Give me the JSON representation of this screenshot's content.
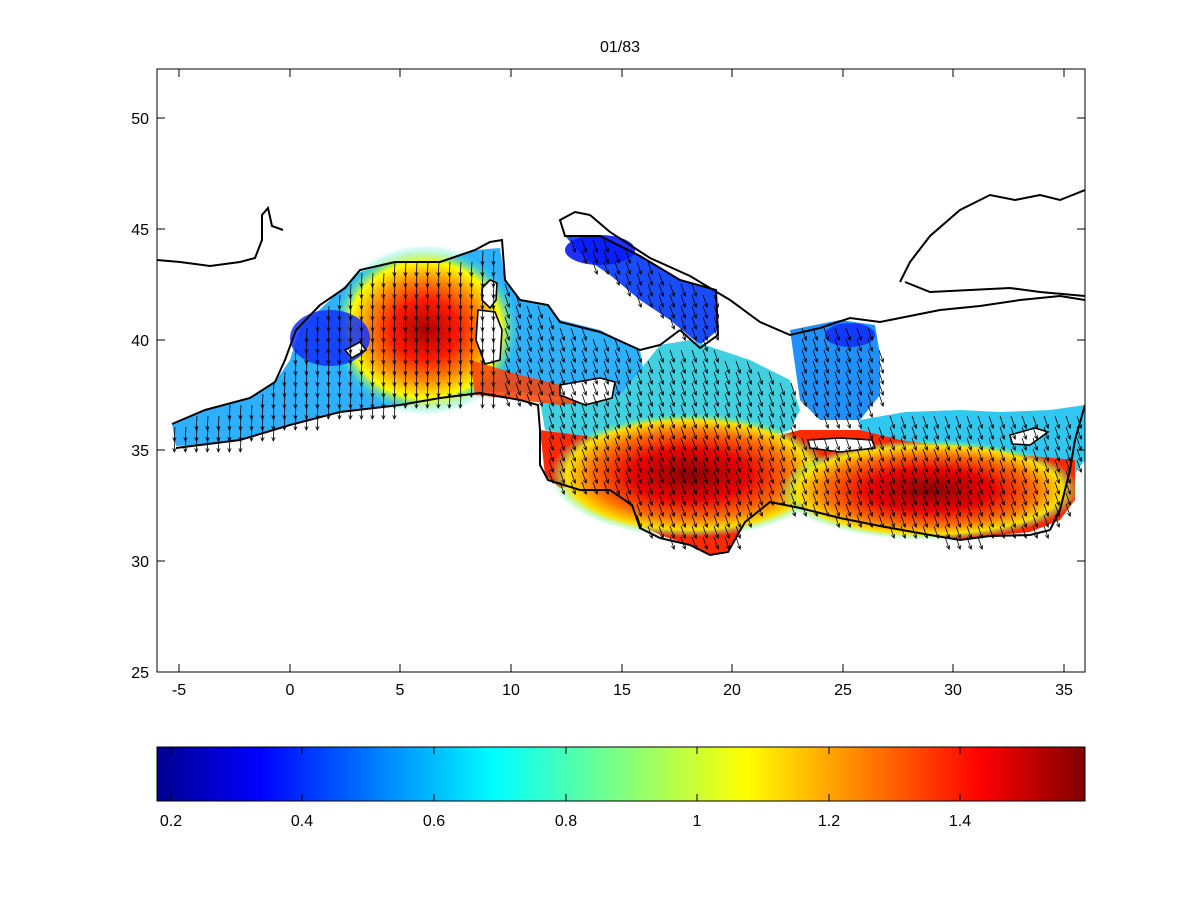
{
  "title": "01/83",
  "map": {
    "x_ticks": [
      "-5",
      "0",
      "5",
      "10",
      "15",
      "20",
      "25",
      "30",
      "35"
    ],
    "y_ticks": [
      "50",
      "45",
      "40",
      "35",
      "30",
      "25"
    ],
    "x_range": [
      -6,
      36
    ],
    "y_range": [
      25,
      52.2
    ]
  },
  "colorbar": {
    "ticks": [
      "0.2",
      "0.4",
      "0.6",
      "0.8",
      "1",
      "1.2",
      "1.4"
    ],
    "range": [
      0.18,
      1.59
    ],
    "colormap": "jet"
  },
  "colors": {
    "axes": "#000000",
    "background": "#ffffff"
  }
}
